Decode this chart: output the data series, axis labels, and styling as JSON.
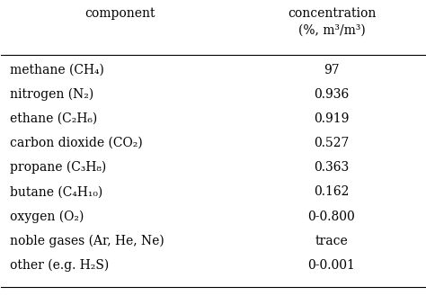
{
  "col1_header": "component",
  "col2_header_line1": "concentration",
  "col2_header_line2": "(%, m³/m³)",
  "rows": [
    [
      "methane (CH₄)",
      "97"
    ],
    [
      "nitrogen (N₂)",
      "0.936"
    ],
    [
      "ethane (C₂H₆)",
      "0.919"
    ],
    [
      "carbon dioxide (CO₂)",
      "0.527"
    ],
    [
      "propane (C₃H₈)",
      "0.363"
    ],
    [
      "butane (C₄H₁₀)",
      "0.162"
    ],
    [
      "oxygen (O₂)",
      "0-0.800"
    ],
    [
      "noble gases (Ar, He, Ne)",
      "trace"
    ],
    [
      "other (e.g. H₂S)",
      "0-0.001"
    ]
  ],
  "bg_color": "#ffffff",
  "text_color": "#000000",
  "font_size": 10,
  "header_font_size": 10
}
